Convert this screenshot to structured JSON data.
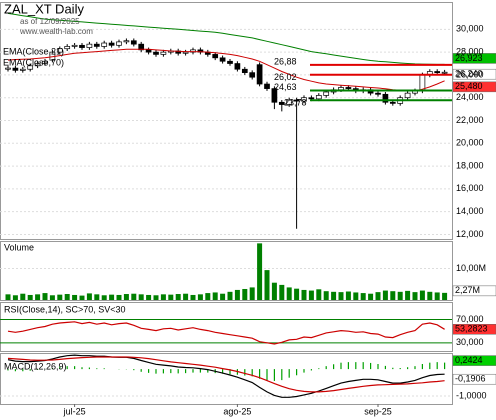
{
  "chart_data": [
    {
      "type": "candlestick",
      "title": "ZAL_XT Daily",
      "subtitle": "as of 12/09/2025",
      "source": "www.wealth-lab.com",
      "xticks": [
        {
          "value": 9,
          "label": "jul-25"
        },
        {
          "value": 31,
          "label": "ago-25"
        },
        {
          "value": 50,
          "label": "sep-25"
        }
      ],
      "open": [
        26500,
        26600,
        26400,
        26500,
        26800,
        27000,
        27300,
        28000,
        28300,
        28500,
        28600,
        28400,
        28700,
        28500,
        28800,
        28600,
        28900,
        29000,
        28700,
        28200,
        28000,
        27800,
        28000,
        28100,
        27900,
        28000,
        28200,
        28000,
        27800,
        27500,
        27200,
        27000,
        26500,
        26200,
        26900,
        25200,
        24800,
        23600,
        23400,
        23800,
        23700,
        24000,
        23900,
        24200,
        24500,
        24700,
        24900,
        24800,
        24600,
        24700,
        24400,
        24300,
        23600,
        23500,
        24000,
        24400,
        24600,
        26000,
        26300,
        26200
      ],
      "high": [
        26800,
        26800,
        26700,
        27000,
        27200,
        27400,
        28200,
        28500,
        28700,
        28800,
        28800,
        28900,
        28900,
        29000,
        29000,
        29100,
        29200,
        29200,
        28900,
        28400,
        28200,
        28200,
        28300,
        28300,
        28200,
        28400,
        28400,
        28200,
        28000,
        27700,
        27400,
        27200,
        26700,
        26400,
        27100,
        25400,
        25000,
        23800,
        24000,
        24000,
        24200,
        24200,
        24400,
        24700,
        24900,
        25100,
        25100,
        25000,
        24900,
        24900,
        24600,
        24500,
        23800,
        24200,
        24600,
        24800,
        26200,
        26500,
        26500,
        26440
      ],
      "low": [
        26300,
        26200,
        26200,
        26300,
        26600,
        26800,
        27100,
        27800,
        28100,
        28300,
        28200,
        28200,
        28300,
        28300,
        28400,
        28400,
        28700,
        28500,
        28000,
        27800,
        27600,
        27600,
        27800,
        27700,
        27700,
        27800,
        27800,
        27600,
        27300,
        27000,
        26800,
        26300,
        26000,
        25600,
        25000,
        24600,
        23000,
        22800,
        23200,
        12500,
        23500,
        23700,
        23700,
        24000,
        24300,
        24500,
        24600,
        24400,
        24400,
        24200,
        24100,
        23400,
        23300,
        23300,
        23800,
        24200,
        24400,
        25800,
        26000,
        26000
      ],
      "close": [
        26600,
        26400,
        26500,
        26800,
        27000,
        27200,
        28000,
        28300,
        28500,
        28600,
        28400,
        28700,
        28500,
        28800,
        28600,
        28900,
        29000,
        28700,
        28200,
        28000,
        27800,
        28000,
        28100,
        27900,
        28000,
        28200,
        28000,
        27800,
        27500,
        27200,
        27000,
        26500,
        26200,
        25800,
        25200,
        24800,
        23600,
        23400,
        23800,
        23700,
        24000,
        23900,
        24200,
        24500,
        24700,
        24900,
        24800,
        24600,
        24700,
        24400,
        24300,
        23600,
        23500,
        24000,
        24400,
        24600,
        26000,
        26300,
        26200,
        26240
      ],
      "close_label": "26,240",
      "series": [
        {
          "name": "EMA(Close,21)",
          "color": "#cc0000",
          "last_label": "25,480",
          "values": [
            27300,
            27350,
            27380,
            27400,
            27450,
            27500,
            27600,
            27700,
            27800,
            27900,
            27950,
            28000,
            28050,
            28100,
            28150,
            28200,
            28250,
            28250,
            28250,
            28250,
            28200,
            28150,
            28100,
            28080,
            28050,
            28050,
            28030,
            28000,
            27950,
            27880,
            27800,
            27700,
            27550,
            27400,
            27200,
            26900,
            26600,
            26300,
            26050,
            25800,
            25600,
            25450,
            25300,
            25200,
            25150,
            25100,
            25050,
            25000,
            24950,
            24900,
            24850,
            24780,
            24700,
            24650,
            24600,
            24600,
            24750,
            24950,
            25200,
            25480
          ]
        },
        {
          "name": "EMA(Close,70)",
          "color": "#008000",
          "last_label": "26,923",
          "values": [
            31400,
            31300,
            31200,
            31100,
            31000,
            30900,
            30850,
            30800,
            30750,
            30700,
            30650,
            30600,
            30550,
            30500,
            30450,
            30400,
            30350,
            30300,
            30250,
            30200,
            30150,
            30100,
            30050,
            30000,
            29950,
            29900,
            29850,
            29800,
            29750,
            29650,
            29550,
            29450,
            29350,
            29250,
            29100,
            28950,
            28800,
            28650,
            28500,
            28350,
            28200,
            28050,
            27950,
            27850,
            27750,
            27650,
            27550,
            27450,
            27350,
            27270,
            27200,
            27150,
            27100,
            27050,
            27000,
            26970,
            26950,
            26930,
            26925,
            26923
          ]
        }
      ],
      "levels": [
        {
          "value": 26880,
          "label": "26,88",
          "color": "#e00000"
        },
        {
          "value": 26020,
          "label": "26,02",
          "color": "#e00000"
        },
        {
          "value": 24630,
          "label": "24,63",
          "color": "#008000"
        },
        {
          "value": 23780,
          "label": "23,78",
          "color": "#008000"
        }
      ],
      "ylim": [
        11600,
        32400
      ],
      "yticks": [
        {
          "value": 12000,
          "label": "12,000"
        },
        {
          "value": 14000,
          "label": "14,000"
        },
        {
          "value": 16000,
          "label": "16,000"
        },
        {
          "value": 18000,
          "label": "18,000"
        },
        {
          "value": 20000,
          "label": "20,000"
        },
        {
          "value": 22000,
          "label": "22,000"
        },
        {
          "value": 24000,
          "label": "24,000"
        },
        {
          "value": 26000,
          "label": "26,000"
        },
        {
          "value": 28000,
          "label": "28,000"
        },
        {
          "value": 30000,
          "label": "30,000"
        }
      ]
    },
    {
      "type": "bar",
      "title": "Volume",
      "color": "#008000",
      "last_label": "2,27M",
      "values": [
        1.8,
        1.5,
        2.0,
        1.6,
        1.8,
        2.2,
        1.5,
        1.7,
        1.9,
        1.6,
        1.4,
        2.1,
        1.8,
        1.5,
        1.7,
        1.6,
        1.9,
        2.0,
        1.8,
        1.6,
        1.5,
        1.8,
        1.7,
        1.9,
        2.0,
        1.6,
        1.8,
        2.2,
        2.4,
        2.0,
        2.6,
        3.2,
        3.5,
        4.0,
        18.0,
        9.5,
        5.5,
        4.8,
        4.0,
        3.6,
        3.2,
        3.0,
        3.4,
        2.8,
        2.6,
        2.5,
        2.7,
        2.4,
        2.2,
        2.0,
        2.5,
        3.0,
        2.8,
        2.6,
        2.9,
        2.5,
        3.0,
        2.6,
        2.4,
        2.27
      ],
      "ylim": [
        0,
        18.75
      ],
      "yticks": [
        {
          "value": 10,
          "label": "10,00M"
        }
      ]
    },
    {
      "type": "line",
      "title": "RSI(Close,14), SC>70, SV<30",
      "color": "#cc0000",
      "last_label": "53,2823",
      "values": [
        50,
        48,
        50,
        53,
        56,
        58,
        62,
        64,
        65,
        66,
        63,
        65,
        62,
        64,
        61,
        63,
        64,
        60,
        55,
        53,
        51,
        54,
        55,
        52,
        54,
        56,
        53,
        51,
        48,
        46,
        44,
        42,
        40,
        38,
        32,
        30,
        28,
        31,
        35,
        36,
        40,
        39,
        43,
        47,
        49,
        51,
        50,
        48,
        49,
        46,
        45,
        40,
        39,
        44,
        48,
        51,
        62,
        64,
        61,
        53.2823
      ],
      "ylim": [
        16,
        100
      ],
      "yticks": [
        {
          "value": 70,
          "label": "70,000"
        },
        {
          "value": 30,
          "label": "30,000"
        }
      ]
    },
    {
      "type": "line",
      "title": "MACD(12,26,9)",
      "series": [
        {
          "color": "#000000",
          "last_label": "-0,1906",
          "values": [
            0.35,
            0.3,
            0.28,
            0.28,
            0.3,
            0.32,
            0.38,
            0.45,
            0.5,
            0.52,
            0.5,
            0.5,
            0.48,
            0.48,
            0.45,
            0.44,
            0.44,
            0.4,
            0.32,
            0.25,
            0.18,
            0.15,
            0.12,
            0.08,
            0.06,
            0.05,
            0.02,
            -0.02,
            -0.08,
            -0.15,
            -0.22,
            -0.3,
            -0.4,
            -0.5,
            -0.68,
            -0.85,
            -0.98,
            -1.05,
            -1.05,
            -1.02,
            -0.96,
            -0.9,
            -0.82,
            -0.72,
            -0.62,
            -0.52,
            -0.46,
            -0.42,
            -0.38,
            -0.38,
            -0.4,
            -0.46,
            -0.52,
            -0.52,
            -0.48,
            -0.42,
            -0.32,
            -0.24,
            -0.2,
            -0.1906
          ]
        },
        {
          "color": "#cc0000",
          "values": [
            0.4,
            0.38,
            0.36,
            0.34,
            0.33,
            0.33,
            0.34,
            0.36,
            0.39,
            0.41,
            0.43,
            0.44,
            0.45,
            0.45,
            0.45,
            0.45,
            0.45,
            0.44,
            0.42,
            0.39,
            0.35,
            0.31,
            0.27,
            0.24,
            0.21,
            0.18,
            0.15,
            0.11,
            0.07,
            0.02,
            -0.03,
            -0.09,
            -0.16,
            -0.23,
            -0.32,
            -0.43,
            -0.54,
            -0.64,
            -0.73,
            -0.79,
            -0.83,
            -0.85,
            -0.85,
            -0.83,
            -0.8,
            -0.76,
            -0.72,
            -0.68,
            -0.64,
            -0.61,
            -0.59,
            -0.58,
            -0.57,
            -0.56,
            -0.55,
            -0.53,
            -0.51,
            -0.48,
            -0.46,
            -0.433
          ]
        }
      ],
      "histogram": {
        "color": "#00a000",
        "last_label": "0,2424",
        "values": [
          -0.05,
          -0.08,
          -0.08,
          -0.06,
          -0.03,
          -0.01,
          0.04,
          0.09,
          0.11,
          0.11,
          0.07,
          0.06,
          0.03,
          0.03,
          0,
          -0.01,
          -0.01,
          -0.04,
          -0.1,
          -0.14,
          -0.17,
          -0.16,
          -0.15,
          -0.16,
          -0.15,
          -0.13,
          -0.13,
          -0.13,
          -0.15,
          -0.17,
          -0.19,
          -0.21,
          -0.24,
          -0.27,
          -0.36,
          -0.42,
          -0.44,
          -0.41,
          -0.32,
          -0.23,
          -0.13,
          -0.05,
          0.03,
          0.11,
          0.18,
          0.24,
          0.26,
          0.26,
          0.26,
          0.23,
          0.19,
          0.12,
          0.05,
          0.04,
          0.07,
          0.11,
          0.19,
          0.24,
          0.26,
          0.2424
        ]
      },
      "ylim": [
        -1.3,
        0.6
      ],
      "yticks": [
        {
          "value": -1,
          "label": "-1,0000"
        }
      ]
    }
  ]
}
